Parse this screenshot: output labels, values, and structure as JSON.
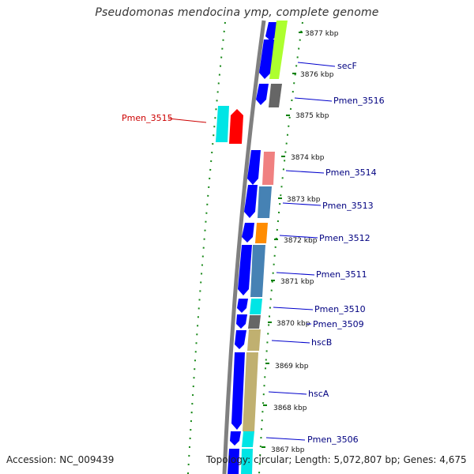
{
  "title": "Pseudomonas mendocina ymp, complete genome",
  "accession": "Accession: NC_009439",
  "topology": "Topology: circular; Length: 5,072,807 bp; Genes: 4,675",
  "colors": {
    "forward_strand": "#0000ff",
    "reverse_strand_highlight": "#ff0000",
    "cyan": "#00e5e5",
    "gray": "#555555",
    "pink": "#f08080",
    "steelblue": "#4682b4",
    "orange": "#ff8c00",
    "khaki": "#c0b070",
    "lime": "#adff2f",
    "tick": "#008000",
    "label_blue": "#000080",
    "label_red": "#cc0000"
  },
  "kbp_labels": [
    "3877 kbp",
    "3876 kbp",
    "3875 kbp",
    "3874 kbp",
    "3873 kbp",
    "3872 kbp",
    "3871 kbp",
    "3870 kbp",
    "3869 kbp",
    "3868 kbp",
    "3867 kbp"
  ],
  "gene_labels": [
    "secF",
    "Pmen_3516",
    "Pmen_3514",
    "Pmen_3513",
    "Pmen_3512",
    "Pmen_3511",
    "Pmen_3510",
    "Pmen_3509",
    "hscB",
    "hscA",
    "Pmen_3506"
  ],
  "highlight_label": "Pmen_3515"
}
